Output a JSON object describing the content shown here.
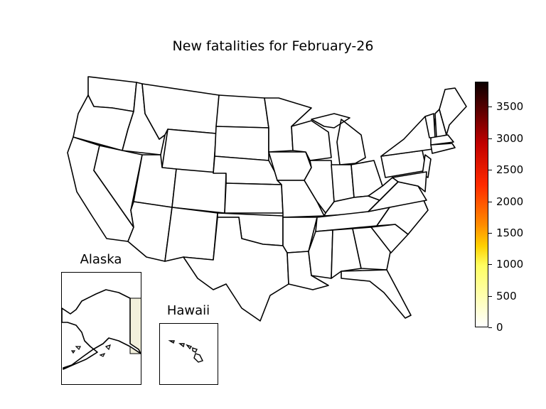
{
  "title": "New fatalities for February-26",
  "insets": {
    "alaska": {
      "title": "Alaska"
    },
    "hawaii": {
      "title": "Hawaii"
    }
  },
  "colorbar": {
    "colormap": "hot_r",
    "min": 0,
    "max": 3900,
    "ticks": [
      "0",
      "500",
      "1000",
      "1500",
      "2000",
      "2500",
      "3000",
      "3500"
    ]
  },
  "colors": {
    "state_fill": "#ffffff",
    "border": "#000000",
    "alaska_neighbor_fill": "#f2f0dc"
  }
}
